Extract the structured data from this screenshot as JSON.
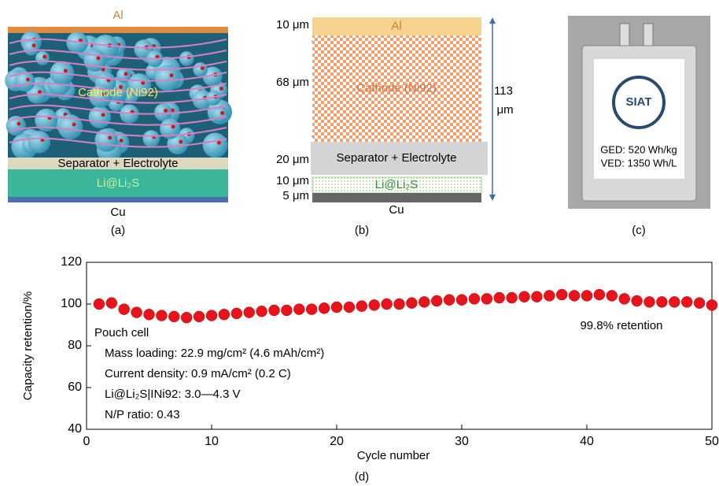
{
  "panel_a": {
    "top": "Al",
    "cathode": "Cathode (Ni92)",
    "separator": "Separator + Electrolyte",
    "anode": "Li@Li₂S",
    "bottom": "Cu",
    "caption": "(a)"
  },
  "panel_b": {
    "layers": [
      {
        "thickness": "10 μm",
        "label": "Al"
      },
      {
        "thickness": "68 μm",
        "label": "Cathode (Ni92)"
      },
      {
        "thickness": "20 μm",
        "label": "Separator + Electrolyte"
      },
      {
        "thickness": "10 μm",
        "label": "Li@Li₂S"
      },
      {
        "thickness": "5 μm",
        "label": "Cu"
      }
    ],
    "total": "113 μm",
    "caption": "(b)"
  },
  "panel_c": {
    "logo": "SIAT",
    "ged": "GED: 520 Wh/kg",
    "ved": "VED: 1350 Wh/L",
    "caption": "(c)"
  },
  "chart_data": {
    "type": "scatter",
    "caption": "(d)",
    "xlabel": "Cycle number",
    "ylabel": "Capacity retention/%",
    "x": [
      1,
      2,
      3,
      4,
      5,
      6,
      7,
      8,
      9,
      10,
      11,
      12,
      13,
      14,
      15,
      16,
      17,
      18,
      19,
      20,
      21,
      22,
      23,
      24,
      25,
      26,
      27,
      28,
      29,
      30,
      31,
      32,
      33,
      34,
      35,
      36,
      37,
      38,
      39,
      40,
      41,
      42,
      43,
      44,
      45,
      46,
      47,
      48,
      49,
      50
    ],
    "values": [
      100,
      100.5,
      97.5,
      96,
      95,
      94.5,
      94,
      93.5,
      94,
      94.5,
      95,
      95.5,
      96,
      96.5,
      97,
      97,
      97.5,
      97.5,
      98,
      98.5,
      98.5,
      99,
      99.5,
      100,
      100,
      100.5,
      101,
      101.5,
      102,
      102,
      102.5,
      102.5,
      103,
      103,
      103.5,
      103.5,
      104,
      104.5,
      104,
      104,
      104.5,
      104,
      102.5,
      101.5,
      101,
      101,
      101,
      101,
      100.5,
      99.5
    ],
    "color": "#e8141c",
    "xlim": [
      0,
      50
    ],
    "ylim": [
      40,
      120
    ],
    "xticks": [
      0,
      10,
      20,
      30,
      40,
      50
    ],
    "yticks": [
      40,
      60,
      80,
      100,
      120
    ],
    "annotations": [
      "Pouch cell",
      "Mass loading: 22.9 mg/cm² (4.6 mAh/cm²)",
      "Current density: 0.9 mA/cm² (0.2 C)",
      "Li@Li₂S|INi92: 3.0—4.3 V",
      "N/P ratio: 0.43"
    ],
    "note": "99.8% retention"
  }
}
